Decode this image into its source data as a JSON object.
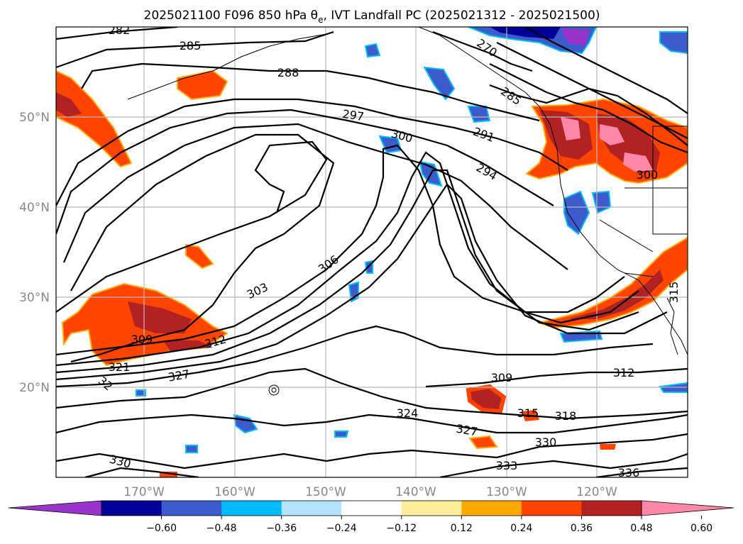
{
  "title": {
    "prefix": "2025021100 F096 850 hPa θ",
    "subscript": "e",
    "suffix": ", IVT Landfall PC (2025021312 - 2025021500)"
  },
  "lat_labels": [
    "50°N",
    "40°N",
    "30°N",
    "20°N"
  ],
  "lon_labels": [
    "170°W",
    "160°W",
    "150°W",
    "140°W",
    "130°W",
    "120°W"
  ],
  "contour_labels": [
    "282",
    "285",
    "288",
    "297",
    "300",
    "291",
    "294",
    "306",
    "303",
    "309",
    "312",
    "321",
    "327",
    "32",
    "309",
    "312",
    "324",
    "327",
    "315",
    "318",
    "330",
    "330",
    "333",
    "336",
    "270",
    "285",
    "300",
    "315"
  ],
  "colorbar": {
    "ticks": [
      "−0.60",
      "−0.48",
      "−0.36",
      "−0.24",
      "−0.12",
      "0.12",
      "0.24",
      "0.36",
      "0.48",
      "0.60"
    ],
    "colors": [
      "#9933cc",
      "#000099",
      "#3d5ccc",
      "#00bbff",
      "#b3e3ff",
      "#ffffff",
      "#ffee99",
      "#ffaa00",
      "#ff4400",
      "#b22222",
      "#ff88aa"
    ]
  }
}
